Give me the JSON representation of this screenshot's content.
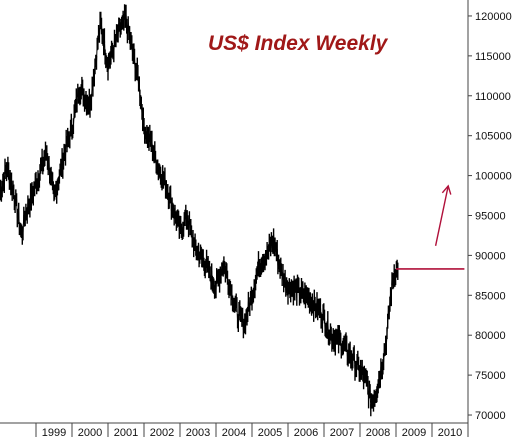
{
  "colors": {
    "price": "#000000",
    "accent": "#b0103a",
    "title": "#a01818",
    "axis": "#444444"
  },
  "chart_data": {
    "type": "line",
    "title": "US$ Index Weekly",
    "xlabel": "",
    "ylabel": "",
    "x_ticks": [
      "1999",
      "2000",
      "2001",
      "2002",
      "2003",
      "2004",
      "2005",
      "2006",
      "2007",
      "2008",
      "2009",
      "2010"
    ],
    "y_ticks": [
      "70000",
      "75000",
      "80000",
      "85000",
      "90000",
      "95000",
      "100000",
      "105000",
      "110000",
      "115000",
      "120000"
    ],
    "xlim": [
      1998.0,
      2011.0
    ],
    "ylim": [
      69000,
      122000
    ],
    "y_axis_position": "right",
    "grid": false,
    "series": [
      {
        "x": [
          1998.0,
          1998.2,
          1998.4,
          1998.6,
          1998.7,
          1999.0,
          1999.3,
          1999.5,
          1999.8,
          2000.0,
          2000.2,
          2000.5,
          2000.7,
          2000.8,
          2001.0,
          2001.2,
          2001.3,
          2001.5,
          2001.7,
          2001.85,
          2002.0,
          2002.2,
          2002.4,
          2002.6,
          2002.8,
          2003.0,
          2003.2,
          2003.4,
          2003.7,
          2003.9,
          2004.0,
          2004.2,
          2004.4,
          2004.6,
          2004.8,
          2005.0,
          2005.2,
          2005.4,
          2005.6,
          2005.8,
          2006.0,
          2006.3,
          2006.6,
          2006.9,
          2007.2,
          2007.5,
          2007.8,
          2008.0,
          2008.2,
          2008.3,
          2008.45,
          2008.6,
          2008.75,
          2008.85,
          2008.95,
          2009.05
        ],
        "y": [
          98000,
          101000,
          97500,
          92500,
          95000,
          99000,
          103000,
          97000,
          103000,
          106000,
          111000,
          109000,
          116000,
          119000,
          114000,
          116500,
          118000,
          119500,
          115000,
          112000,
          106000,
          104000,
          101000,
          99000,
          96000,
          93000,
          95000,
          91000,
          89000,
          87000,
          86000,
          89000,
          86000,
          82500,
          81500,
          85000,
          89000,
          90000,
          92000,
          88000,
          86000,
          85500,
          84500,
          83000,
          80000,
          79000,
          77000,
          75500,
          74000,
          71500,
          73000,
          76000,
          80000,
          85000,
          88000,
          88000
        ]
      }
    ],
    "annotations": [
      {
        "type": "horizontal_line",
        "x_start": 2009.0,
        "x_end": 2010.9,
        "y": 88300
      },
      {
        "type": "arrow",
        "x_start": 2010.1,
        "y_start": 91200,
        "x_end": 2010.45,
        "y_end": 98700
      }
    ]
  }
}
